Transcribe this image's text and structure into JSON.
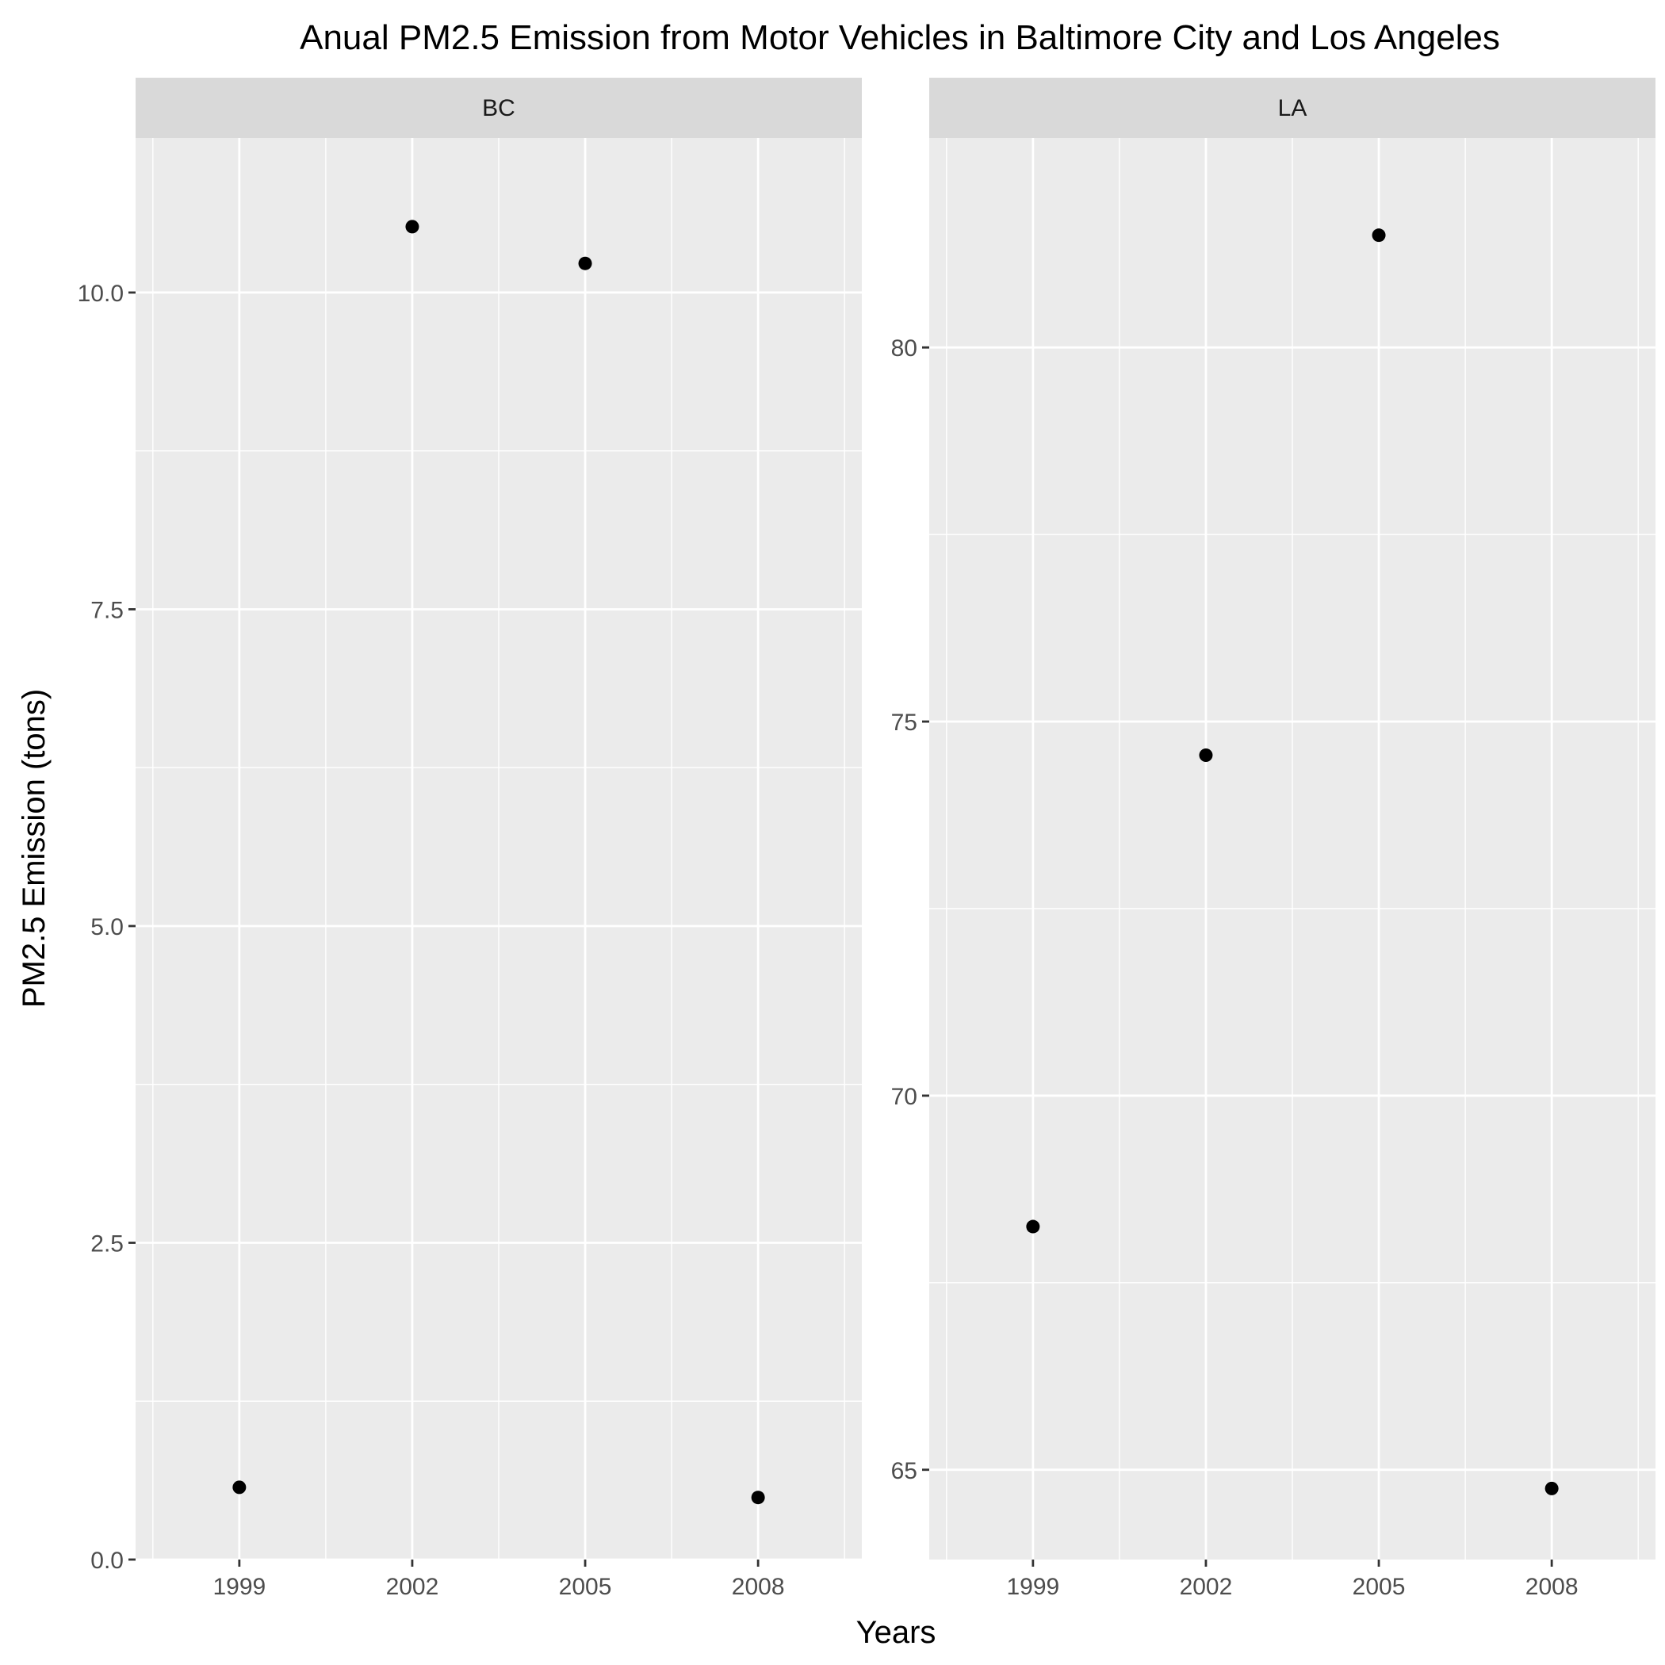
{
  "chart_data": {
    "type": "scatter",
    "title": "Anual PM2.5 Emission from Motor Vehicles in Baltimore City and Los Angeles",
    "xlabel": "Years",
    "ylabel": "PM2.5 Emission (tons)",
    "x_ticks": [
      "1999",
      "2002",
      "2005",
      "2008"
    ],
    "x": [
      1999,
      2002,
      2005,
      2008
    ],
    "xlim": [
      1997.2,
      2009.8
    ],
    "grid": true,
    "legend": "none",
    "colors": {
      "panel_bg": "#ebebeb",
      "strip_bg": "#d9d9d9",
      "grid": "#ffffff",
      "point": "#000000",
      "tick_mark": "#333333",
      "tick_label": "#4d4d4d"
    },
    "panels": [
      {
        "label": "BC",
        "ylim": [
          0,
          11.22
        ],
        "y_ticks": [
          0,
          2.5,
          5,
          7.5,
          10
        ],
        "y_tick_labels": [
          "0.0",
          "2.5",
          "5.0",
          "7.5",
          "10.0"
        ],
        "y_minor": [
          1.25,
          3.75,
          6.25,
          8.75
        ],
        "values": [
          0.57,
          10.52,
          10.23,
          0.49
        ]
      },
      {
        "label": "LA",
        "ylim": [
          63.8,
          82.8
        ],
        "y_ticks": [
          65,
          70,
          75,
          80
        ],
        "y_tick_labels": [
          "65",
          "70",
          "75",
          "80"
        ],
        "y_minor": [
          67.5,
          72.5,
          77.5
        ],
        "values": [
          68.25,
          74.55,
          81.5,
          64.75
        ]
      }
    ]
  }
}
